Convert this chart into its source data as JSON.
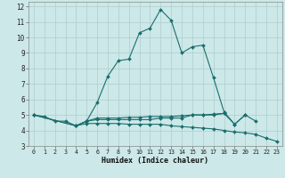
{
  "xlabel": "Humidex (Indice chaleur)",
  "bg_color": "#cce8e8",
  "grid_color": "#aecece",
  "line_color": "#1a6e6e",
  "xlim": [
    -0.5,
    23.5
  ],
  "ylim": [
    3.0,
    12.3
  ],
  "xticks": [
    0,
    1,
    2,
    3,
    4,
    5,
    6,
    7,
    8,
    9,
    10,
    11,
    12,
    13,
    14,
    15,
    16,
    17,
    18,
    19,
    20,
    21,
    22,
    23
  ],
  "yticks": [
    3,
    4,
    5,
    6,
    7,
    8,
    9,
    10,
    11,
    12
  ],
  "lines": [
    {
      "x": [
        0,
        1,
        2,
        3,
        4,
        5,
        6,
        7,
        8,
        9,
        10,
        11,
        12,
        13,
        14,
        15,
        16,
        17,
        18,
        19,
        20,
        21
      ],
      "y": [
        5.0,
        4.9,
        4.6,
        4.6,
        4.3,
        4.6,
        5.8,
        7.5,
        8.5,
        8.6,
        10.3,
        10.6,
        11.8,
        11.1,
        9.0,
        9.4,
        9.5,
        7.4,
        5.2,
        4.4,
        5.0,
        4.6
      ]
    },
    {
      "x": [
        0,
        4,
        5,
        6,
        7,
        8,
        9,
        10,
        11,
        12,
        13,
        14,
        15,
        16,
        17,
        18,
        19,
        20
      ],
      "y": [
        5.0,
        4.3,
        4.6,
        4.7,
        4.7,
        4.7,
        4.7,
        4.7,
        4.7,
        4.8,
        4.8,
        4.8,
        5.0,
        5.0,
        5.0,
        5.1,
        4.4,
        5.0
      ]
    },
    {
      "x": [
        0,
        4,
        5,
        6,
        7,
        8,
        9,
        10,
        11,
        12,
        13,
        14,
        15,
        16,
        17,
        18,
        19,
        20,
        21,
        22,
        23
      ],
      "y": [
        5.0,
        4.3,
        4.45,
        4.45,
        4.45,
        4.45,
        4.4,
        4.4,
        4.4,
        4.4,
        4.3,
        4.25,
        4.2,
        4.15,
        4.1,
        4.0,
        3.9,
        3.85,
        3.75,
        3.5,
        3.3
      ]
    },
    {
      "x": [
        4,
        5,
        6,
        7,
        8,
        9,
        10,
        11,
        12,
        13,
        14,
        15,
        16,
        17,
        18
      ],
      "y": [
        4.3,
        4.6,
        4.8,
        4.8,
        4.8,
        4.85,
        4.85,
        4.9,
        4.9,
        4.9,
        4.95,
        5.0,
        5.0,
        5.05,
        5.1
      ]
    }
  ]
}
